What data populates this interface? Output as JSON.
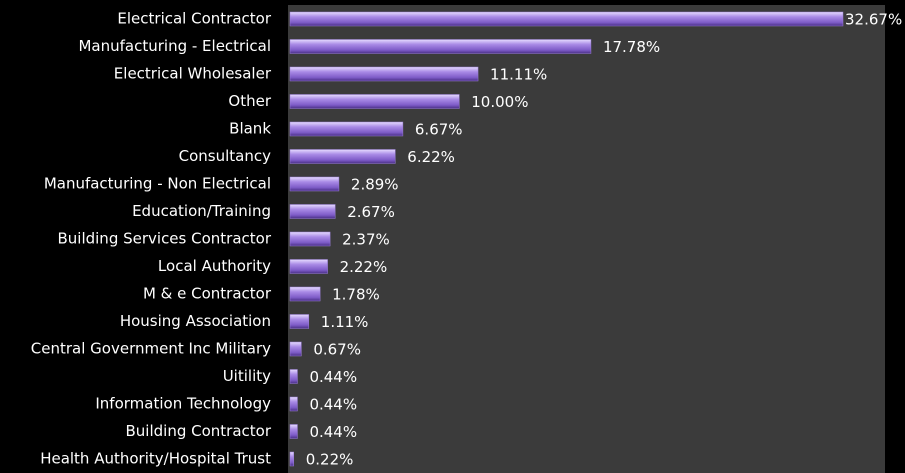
{
  "chart_data": {
    "type": "bar",
    "orientation": "horizontal",
    "color": "#9b7fd9",
    "categories": [
      "Electrical Contractor",
      "Manufacturing - Electrical",
      "Electrical Wholesaler",
      "Other",
      "Blank",
      "Consultancy",
      "Manufacturing - Non Electrical",
      "Education/Training",
      "Building Services Contractor",
      "Local Authority",
      "M & e Contractor",
      "Housing Association",
      "Central Government Inc Military",
      "Uitility",
      "Information Technology",
      "Building Contractor",
      "Health Authority/Hospital Trust"
    ],
    "values": [
      32.67,
      17.78,
      11.11,
      10.0,
      6.67,
      6.22,
      2.89,
      2.67,
      2.37,
      2.22,
      1.78,
      1.11,
      0.67,
      0.44,
      0.44,
      0.44,
      0.22
    ],
    "value_labels": [
      "32.67%",
      "17.78%",
      "11.11%",
      "10.00%",
      "6.67%",
      "6.22%",
      "2.89%",
      "2.67%",
      "2.37%",
      "2.22%",
      "1.78%",
      "1.11%",
      "0.67%",
      "0.44%",
      "0.44%",
      "0.44%",
      "0.22%"
    ]
  }
}
